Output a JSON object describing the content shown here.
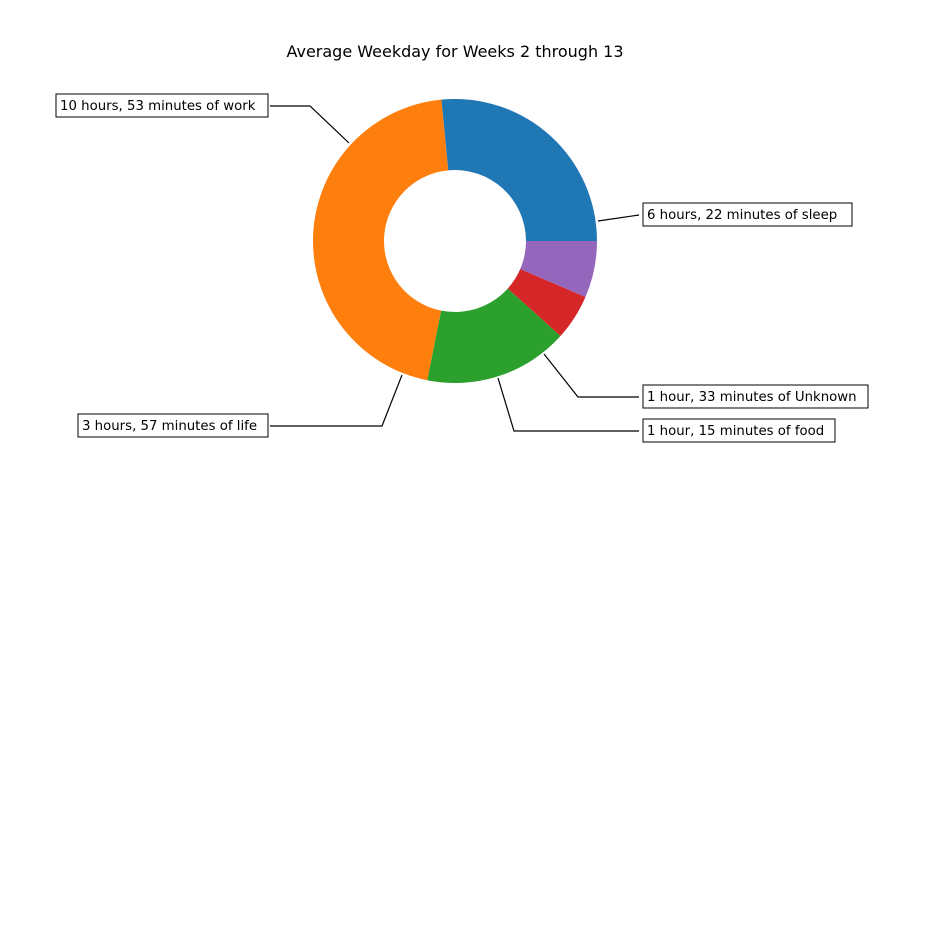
{
  "chart_data": {
    "type": "pie",
    "style": "donut",
    "title": "Average Weekday for Weeks 2 through 13",
    "start_angle_deg": 0,
    "direction": "counterclockwise",
    "slices": [
      {
        "category": "sleep",
        "minutes": 382,
        "label": " 6 hours, 22 minutes of sleep",
        "color": "#1f77b4"
      },
      {
        "category": "work",
        "minutes": 653,
        "label": "10 hours, 53 minutes of work",
        "color": "#ff7f0e"
      },
      {
        "category": "life",
        "minutes": 237,
        "label": "3 hours, 57 minutes of life",
        "color": "#2ca02c"
      },
      {
        "category": "food",
        "minutes": 75,
        "label": "1 hour, 15 minutes of food",
        "color": "#d62728"
      },
      {
        "category": "Unknown",
        "minutes": 93,
        "label": "1 hour, 33 minutes of Unknown",
        "color": "#9467bd"
      }
    ]
  }
}
